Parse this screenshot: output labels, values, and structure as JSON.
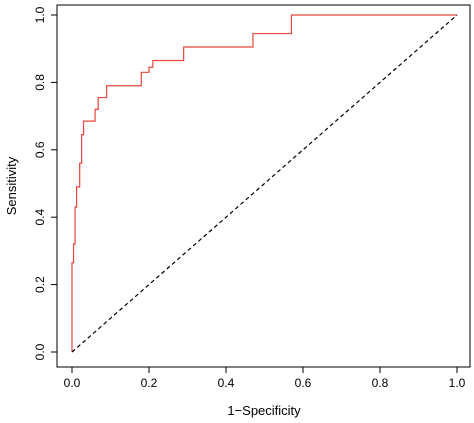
{
  "chart_data": {
    "type": "line",
    "title": "",
    "xlabel": "1−Specificity",
    "ylabel": "Sensitivity",
    "xlim": [
      0.0,
      1.0
    ],
    "ylim": [
      0.0,
      1.0
    ],
    "x_ticks": [
      "0.0",
      "0.2",
      "0.4",
      "0.6",
      "0.8",
      "1.0"
    ],
    "y_ticks": [
      "0.0",
      "0.2",
      "0.4",
      "0.6",
      "0.8",
      "1.0"
    ],
    "grid": false,
    "legend": "none",
    "series": [
      {
        "color": "#e8453c",
        "style": "step",
        "x": [
          0.0,
          0.0,
          0.004,
          0.004,
          0.008,
          0.008,
          0.012,
          0.012,
          0.02,
          0.02,
          0.025,
          0.025,
          0.03,
          0.03,
          0.06,
          0.06,
          0.068,
          0.068,
          0.09,
          0.09,
          0.18,
          0.18,
          0.2,
          0.2,
          0.21,
          0.21,
          0.29,
          0.29,
          0.47,
          0.47,
          0.57,
          0.57,
          1.0
        ],
        "y": [
          0.0,
          0.265,
          0.265,
          0.32,
          0.32,
          0.43,
          0.43,
          0.49,
          0.49,
          0.56,
          0.56,
          0.645,
          0.645,
          0.685,
          0.685,
          0.72,
          0.72,
          0.755,
          0.755,
          0.79,
          0.79,
          0.83,
          0.83,
          0.845,
          0.845,
          0.865,
          0.865,
          0.905,
          0.905,
          0.945,
          0.945,
          1.0,
          1.0
        ]
      },
      {
        "color": "#000000",
        "style": "dashed",
        "x": [
          0.0,
          1.0
        ],
        "y": [
          0.0,
          1.0
        ]
      }
    ]
  }
}
